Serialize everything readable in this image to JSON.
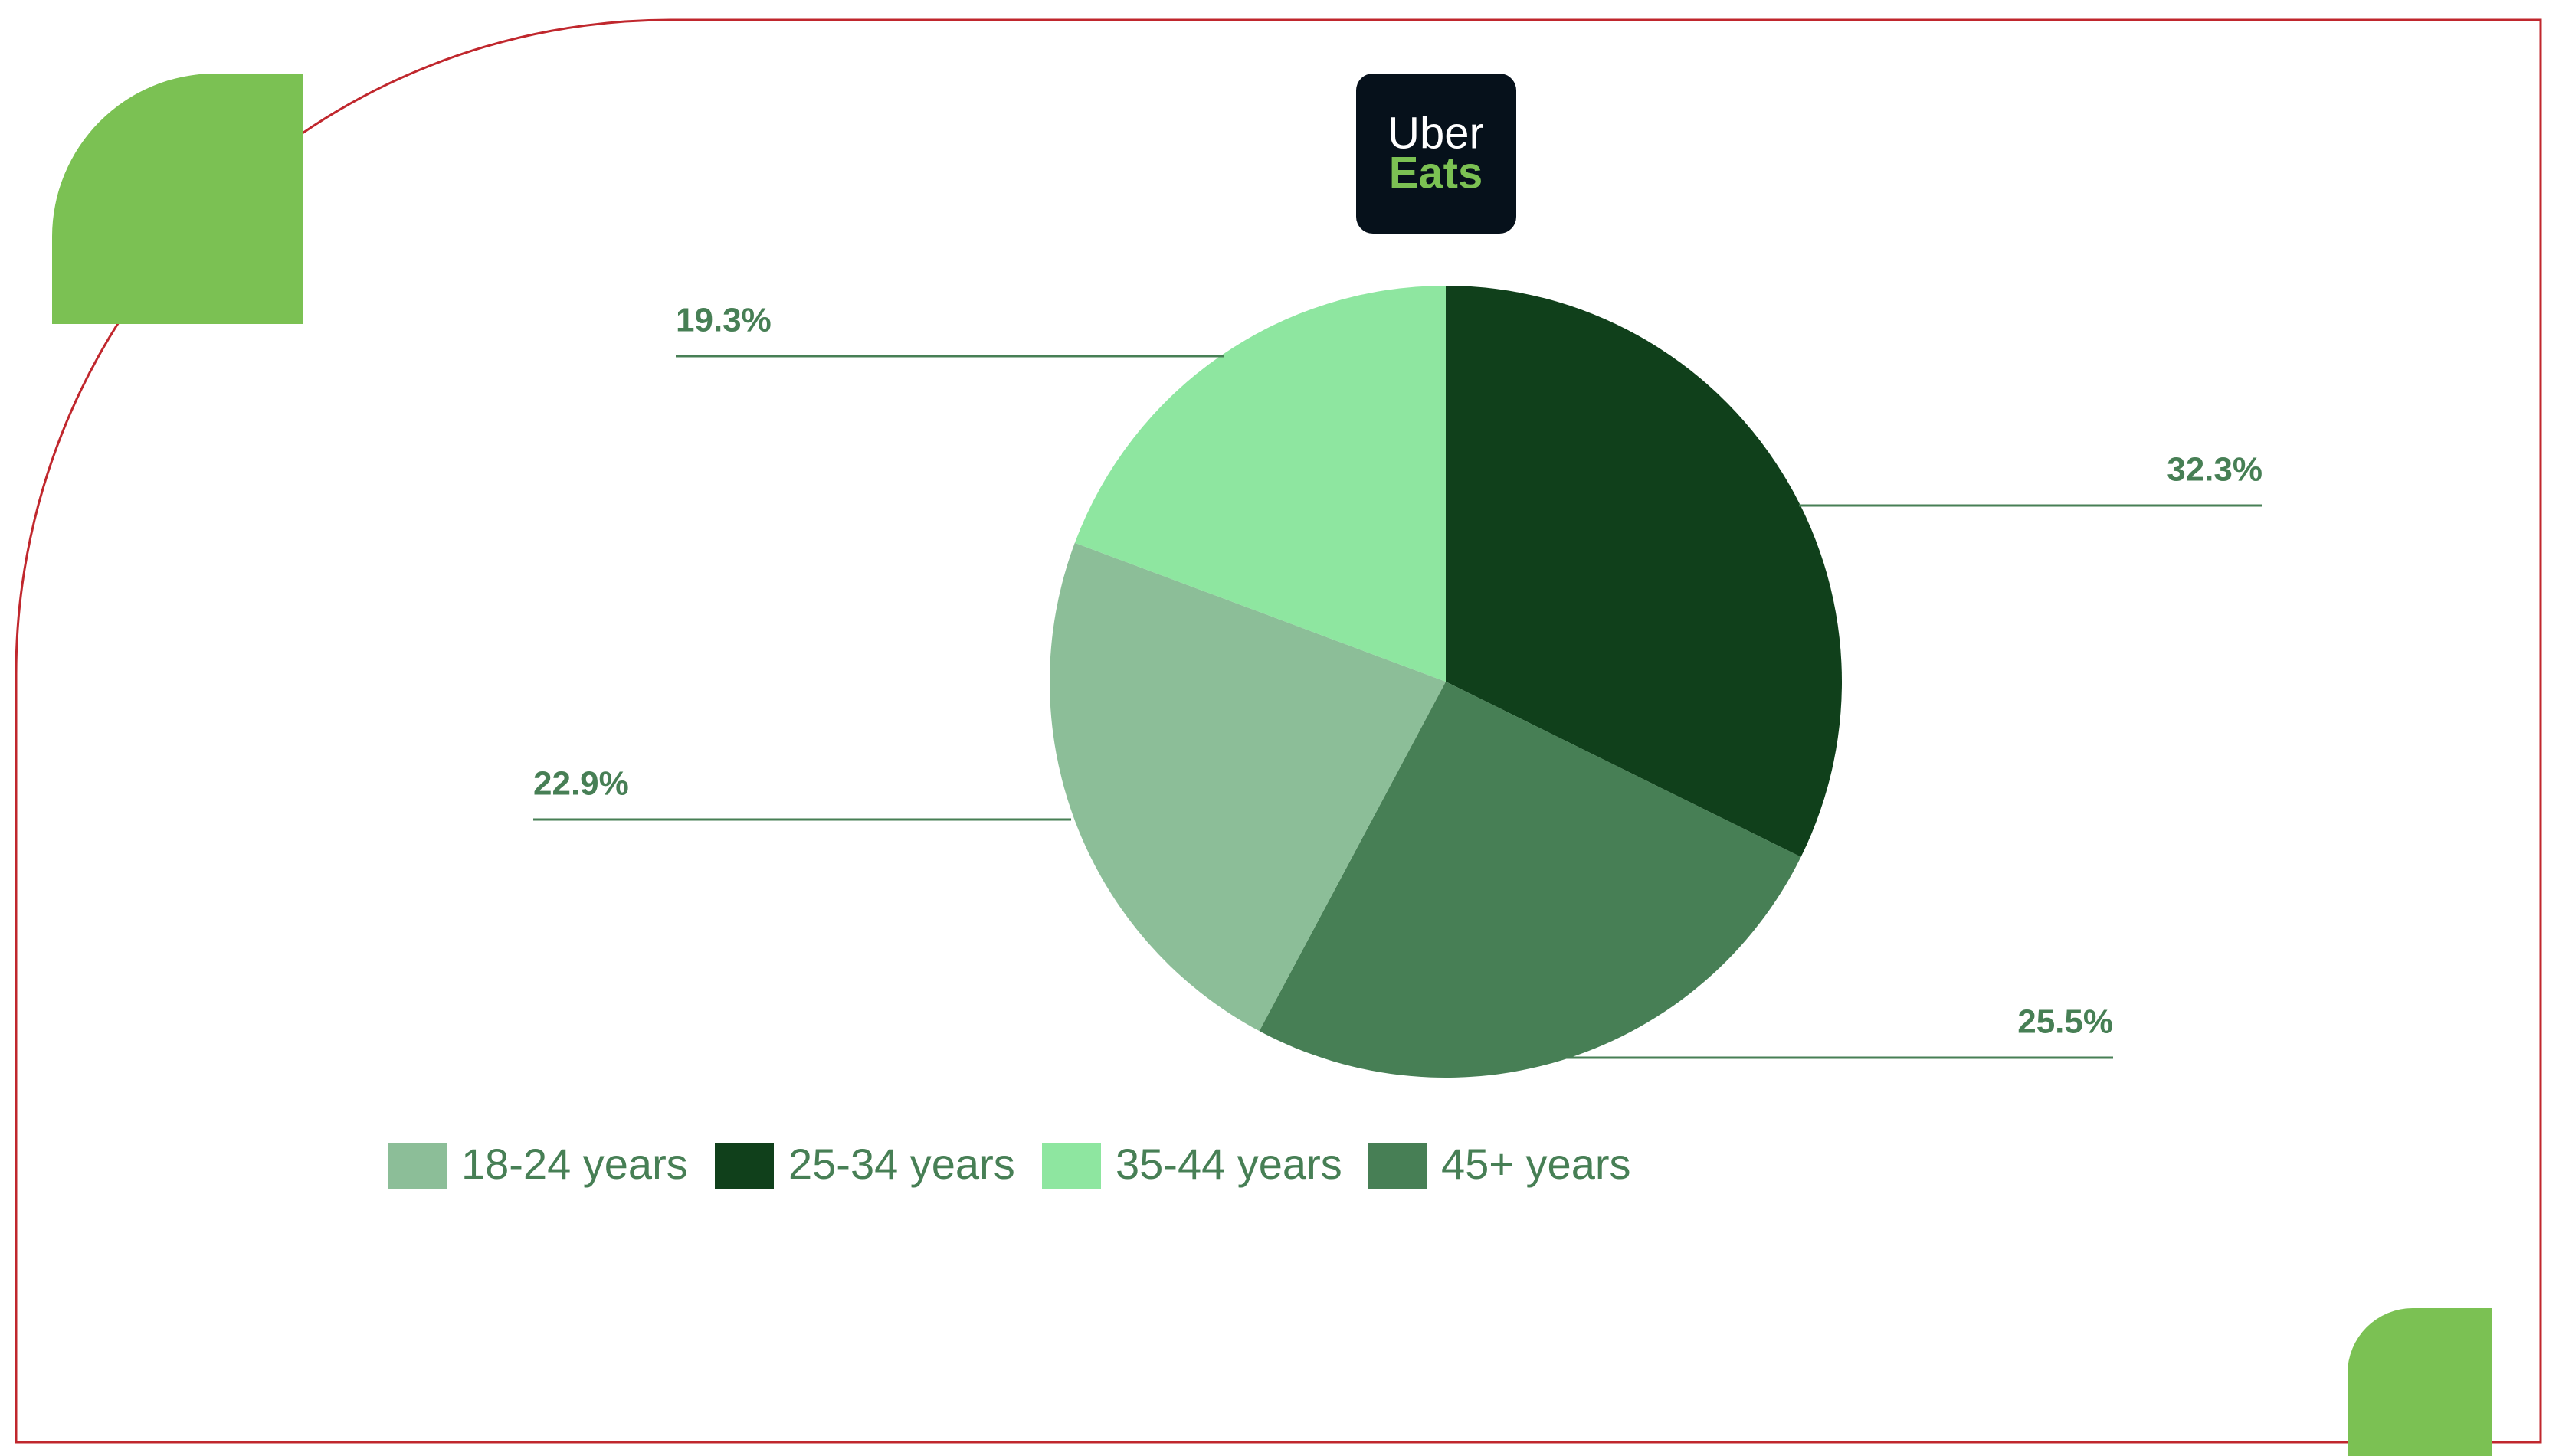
{
  "logo": {
    "line1": "Uber",
    "line2": "Eats"
  },
  "chart_data": {
    "type": "pie",
    "categories": [
      "18-24 years",
      "25-34 years",
      "35-44 years",
      "45+ years"
    ],
    "values": [
      22.9,
      32.3,
      19.3,
      25.5
    ],
    "value_labels": [
      "22.9%",
      "32.3%",
      "19.3%",
      "25.5%"
    ],
    "colors": [
      "#8cbe98",
      "#10401b",
      "#8ee6a0",
      "#477f55"
    ],
    "legend": "bottom"
  }
}
